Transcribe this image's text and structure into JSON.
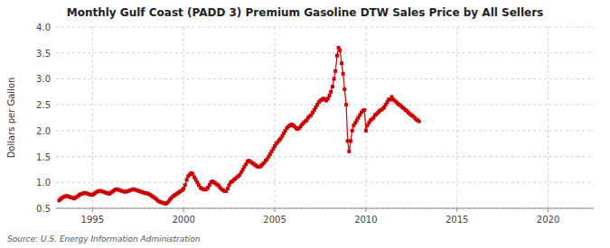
{
  "chart_data": {
    "type": "line",
    "title": "Monthly Gulf Coast (PADD 3) Premium Gasoline DTW Sales Price by All Sellers",
    "ylabel": "Dollars per Gallon",
    "source": "Source: U.S. Energy Information Administration",
    "color": "#cc0000",
    "marker": "square",
    "grid": true,
    "xlim": [
      1993.0,
      2022.5
    ],
    "ylim": [
      0.5,
      4.0
    ],
    "xticks": [
      1995,
      2000,
      2005,
      2010,
      2015,
      2020
    ],
    "yticks": [
      0.5,
      {
        "value": 1.0,
        "label": "1.0"
      },
      1.5,
      {
        "value": 2.0,
        "label": "2.0"
      },
      2.5,
      {
        "value": 3.0,
        "label": "3.0"
      },
      3.5,
      {
        "value": 4.0,
        "label": "4.0"
      }
    ],
    "x": [
      1993.17,
      1993.25,
      1993.33,
      1993.42,
      1993.5,
      1993.58,
      1993.67,
      1993.75,
      1993.83,
      1993.92,
      1994.0,
      1994.08,
      1994.17,
      1994.25,
      1994.33,
      1994.42,
      1994.5,
      1994.58,
      1994.67,
      1994.75,
      1994.83,
      1994.92,
      1995.0,
      1995.08,
      1995.17,
      1995.25,
      1995.33,
      1995.42,
      1995.5,
      1995.58,
      1995.67,
      1995.75,
      1995.83,
      1995.92,
      1996.0,
      1996.08,
      1996.17,
      1996.25,
      1996.33,
      1996.42,
      1996.5,
      1996.58,
      1996.67,
      1996.75,
      1996.83,
      1996.92,
      1997.0,
      1997.08,
      1997.17,
      1997.25,
      1997.33,
      1997.42,
      1997.5,
      1997.58,
      1997.67,
      1997.75,
      1997.83,
      1997.92,
      1998.0,
      1998.08,
      1998.17,
      1998.25,
      1998.33,
      1998.42,
      1998.5,
      1998.58,
      1998.67,
      1998.75,
      1998.83,
      1998.92,
      1999.0,
      1999.08,
      1999.17,
      1999.25,
      1999.33,
      1999.42,
      1999.5,
      1999.58,
      1999.67,
      1999.75,
      1999.83,
      1999.92,
      2000.0,
      2000.08,
      2000.17,
      2000.25,
      2000.33,
      2000.42,
      2000.5,
      2000.58,
      2000.67,
      2000.75,
      2000.83,
      2000.92,
      2001.0,
      2001.08,
      2001.17,
      2001.25,
      2001.33,
      2001.42,
      2001.5,
      2001.58,
      2001.67,
      2001.75,
      2001.83,
      2001.92,
      2002.0,
      2002.08,
      2002.17,
      2002.25,
      2002.33,
      2002.42,
      2002.5,
      2002.58,
      2002.67,
      2002.75,
      2002.83,
      2002.92,
      2003.0,
      2003.08,
      2003.17,
      2003.25,
      2003.33,
      2003.42,
      2003.5,
      2003.58,
      2003.67,
      2003.75,
      2003.83,
      2003.92,
      2004.0,
      2004.08,
      2004.17,
      2004.25,
      2004.33,
      2004.42,
      2004.5,
      2004.58,
      2004.67,
      2004.75,
      2004.83,
      2004.92,
      2005.0,
      2005.08,
      2005.17,
      2005.25,
      2005.33,
      2005.42,
      2005.5,
      2005.58,
      2005.67,
      2005.75,
      2005.83,
      2005.92,
      2006.0,
      2006.08,
      2006.17,
      2006.25,
      2006.33,
      2006.42,
      2006.5,
      2006.58,
      2006.67,
      2006.75,
      2006.83,
      2006.92,
      2007.0,
      2007.08,
      2007.17,
      2007.25,
      2007.33,
      2007.42,
      2007.5,
      2007.58,
      2007.67,
      2007.75,
      2007.83,
      2007.92,
      2008.0,
      2008.08,
      2008.17,
      2008.25,
      2008.33,
      2008.42,
      2008.5,
      2008.58,
      2008.67,
      2008.75,
      2008.83,
      2008.92,
      2009.0,
      2009.08,
      2009.17,
      2009.25,
      2009.33,
      2009.42,
      2009.5,
      2009.58,
      2009.67,
      2009.75,
      2009.83,
      2009.92,
      2010.0,
      2010.08,
      2010.17,
      2010.25,
      2010.33,
      2010.42,
      2010.5,
      2010.58,
      2010.67,
      2010.75,
      2010.83,
      2010.92,
      2011.0,
      2011.08,
      2011.17,
      2011.25,
      2011.33,
      2011.42,
      2011.5,
      2011.58,
      2011.67,
      2011.75,
      2011.83,
      2011.92,
      2012.0,
      2012.08,
      2012.17,
      2012.25,
      2012.33,
      2012.42,
      2012.5,
      2012.58,
      2012.67,
      2012.75,
      2012.83,
      2012.92
    ],
    "values": [
      0.65,
      0.68,
      0.7,
      0.72,
      0.73,
      0.74,
      0.73,
      0.72,
      0.71,
      0.7,
      0.69,
      0.71,
      0.73,
      0.75,
      0.77,
      0.78,
      0.79,
      0.8,
      0.79,
      0.78,
      0.77,
      0.76,
      0.76,
      0.78,
      0.8,
      0.82,
      0.83,
      0.84,
      0.83,
      0.82,
      0.81,
      0.8,
      0.79,
      0.78,
      0.8,
      0.82,
      0.84,
      0.86,
      0.87,
      0.86,
      0.85,
      0.84,
      0.83,
      0.82,
      0.82,
      0.83,
      0.84,
      0.85,
      0.86,
      0.87,
      0.86,
      0.85,
      0.84,
      0.83,
      0.82,
      0.81,
      0.8,
      0.79,
      0.79,
      0.78,
      0.76,
      0.74,
      0.72,
      0.7,
      0.68,
      0.65,
      0.63,
      0.62,
      0.61,
      0.6,
      0.59,
      0.6,
      0.63,
      0.67,
      0.7,
      0.73,
      0.75,
      0.77,
      0.79,
      0.81,
      0.83,
      0.85,
      0.88,
      0.95,
      1.05,
      1.12,
      1.15,
      1.18,
      1.16,
      1.1,
      1.05,
      1.0,
      0.95,
      0.9,
      0.88,
      0.87,
      0.86,
      0.87,
      0.9,
      0.95,
      1.0,
      1.02,
      1.0,
      0.98,
      0.96,
      0.94,
      0.9,
      0.87,
      0.85,
      0.83,
      0.83,
      0.88,
      0.95,
      1.0,
      1.02,
      1.05,
      1.07,
      1.1,
      1.12,
      1.15,
      1.2,
      1.25,
      1.3,
      1.35,
      1.4,
      1.42,
      1.4,
      1.38,
      1.36,
      1.34,
      1.32,
      1.3,
      1.3,
      1.32,
      1.35,
      1.38,
      1.42,
      1.45,
      1.5,
      1.55,
      1.6,
      1.65,
      1.7,
      1.75,
      1.78,
      1.82,
      1.85,
      1.9,
      1.95,
      2.0,
      2.05,
      2.08,
      2.1,
      2.12,
      2.1,
      2.08,
      2.05,
      2.03,
      2.05,
      2.08,
      2.12,
      2.15,
      2.18,
      2.2,
      2.25,
      2.28,
      2.3,
      2.35,
      2.4,
      2.45,
      2.5,
      2.55,
      2.58,
      2.6,
      2.62,
      2.6,
      2.58,
      2.62,
      2.68,
      2.75,
      2.85,
      3.0,
      3.15,
      3.45,
      3.6,
      3.55,
      3.3,
      3.1,
      2.8,
      2.5,
      1.8,
      1.6,
      1.8,
      2.0,
      2.1,
      2.15,
      2.2,
      2.25,
      2.3,
      2.35,
      2.38,
      2.4,
      2.0,
      2.1,
      2.15,
      2.2,
      2.22,
      2.25,
      2.3,
      2.32,
      2.35,
      2.38,
      2.4,
      2.42,
      2.45,
      2.5,
      2.55,
      2.6,
      2.6,
      2.65,
      2.6,
      2.58,
      2.55,
      2.52,
      2.5,
      2.48,
      2.45,
      2.43,
      2.4,
      2.38,
      2.35,
      2.32,
      2.3,
      2.28,
      2.25,
      2.22,
      2.2,
      2.18
    ]
  }
}
